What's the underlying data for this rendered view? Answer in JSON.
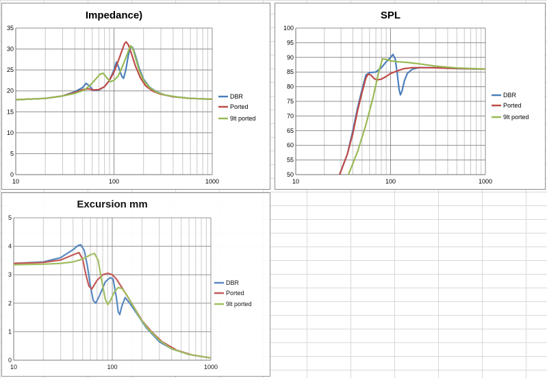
{
  "colors": {
    "DBR": "#4a7ebb",
    "Ported": "#be4b48",
    "9lt ported": "#98b954"
  },
  "chart_data": [
    {
      "type": "line",
      "title": "Impedance)",
      "xscale": "log",
      "xlim": [
        10,
        1000
      ],
      "ylim": [
        0,
        35
      ],
      "xticks": [
        "10",
        "100",
        "1000"
      ],
      "yticks": [
        "0",
        "5",
        "10",
        "15",
        "20",
        "25",
        "30",
        "35"
      ],
      "legend": [
        "DBR",
        "Ported",
        "9lt ported"
      ],
      "series": [
        {
          "name": "DBR",
          "points": [
            [
              10,
              17.9
            ],
            [
              20,
              18.2
            ],
            [
              30,
              18.8
            ],
            [
              40,
              19.8
            ],
            [
              48,
              20.8
            ],
            [
              52,
              21.8
            ],
            [
              56,
              21.2
            ],
            [
              62,
              20.1
            ],
            [
              70,
              20.2
            ],
            [
              80,
              21.0
            ],
            [
              90,
              22.5
            ],
            [
              100,
              25.0
            ],
            [
              106,
              26.9
            ],
            [
              112,
              25.5
            ],
            [
              120,
              23.5
            ],
            [
              125,
              23.0
            ],
            [
              132,
              25.0
            ],
            [
              140,
              28.5
            ],
            [
              148,
              30.5
            ],
            [
              155,
              30.4
            ],
            [
              165,
              28.5
            ],
            [
              180,
              25.5
            ],
            [
              200,
              22.8
            ],
            [
              230,
              20.9
            ],
            [
              270,
              19.8
            ],
            [
              330,
              19.0
            ],
            [
              450,
              18.5
            ],
            [
              600,
              18.2
            ],
            [
              1000,
              18.0
            ]
          ]
        },
        {
          "name": "Ported",
          "points": [
            [
              10,
              17.9
            ],
            [
              20,
              18.2
            ],
            [
              30,
              18.8
            ],
            [
              40,
              19.6
            ],
            [
              48,
              20.3
            ],
            [
              55,
              20.5
            ],
            [
              62,
              20.2
            ],
            [
              70,
              20.3
            ],
            [
              80,
              21.0
            ],
            [
              90,
              22.5
            ],
            [
              100,
              24.5
            ],
            [
              110,
              27.0
            ],
            [
              120,
              29.5
            ],
            [
              128,
              31.3
            ],
            [
              133,
              31.7
            ],
            [
              140,
              31.0
            ],
            [
              150,
              29.0
            ],
            [
              165,
              26.0
            ],
            [
              185,
              23.2
            ],
            [
              210,
              21.2
            ],
            [
              250,
              19.9
            ],
            [
              300,
              19.2
            ],
            [
              400,
              18.6
            ],
            [
              600,
              18.2
            ],
            [
              1000,
              18.0
            ]
          ]
        },
        {
          "name": "9lt ported",
          "points": [
            [
              10,
              17.9
            ],
            [
              20,
              18.2
            ],
            [
              30,
              18.8
            ],
            [
              40,
              19.4
            ],
            [
              50,
              20.2
            ],
            [
              58,
              21.5
            ],
            [
              65,
              22.8
            ],
            [
              72,
              24.0
            ],
            [
              78,
              24.2
            ],
            [
              84,
              23.2
            ],
            [
              92,
              22.2
            ],
            [
              100,
              22.5
            ],
            [
              110,
              23.5
            ],
            [
              120,
              25.5
            ],
            [
              130,
              27.5
            ],
            [
              140,
              29.5
            ],
            [
              148,
              30.8
            ],
            [
              155,
              30.2
            ],
            [
              165,
              28.0
            ],
            [
              180,
              25.0
            ],
            [
              200,
              22.5
            ],
            [
              230,
              20.8
            ],
            [
              270,
              19.7
            ],
            [
              330,
              19.0
            ],
            [
              450,
              18.5
            ],
            [
              600,
              18.2
            ],
            [
              1000,
              18.0
            ]
          ]
        }
      ]
    },
    {
      "type": "line",
      "title": "SPL",
      "xscale": "log",
      "xlim": [
        10,
        1000
      ],
      "ylim": [
        50,
        100
      ],
      "xticks": [
        "10",
        "100",
        "1000"
      ],
      "yticks": [
        "50",
        "55",
        "60",
        "65",
        "70",
        "75",
        "80",
        "85",
        "90",
        "95",
        "100"
      ],
      "legend": [
        "DBR",
        "Ported",
        "9lt ported"
      ],
      "series": [
        {
          "name": "DBR",
          "points": [
            [
              29,
              50
            ],
            [
              35,
              57
            ],
            [
              40,
              65
            ],
            [
              45,
              73
            ],
            [
              50,
              79
            ],
            [
              55,
              84
            ],
            [
              60,
              84.8
            ],
            [
              70,
              85.0
            ],
            [
              80,
              86.5
            ],
            [
              90,
              88.5
            ],
            [
              100,
              90.0
            ],
            [
              106,
              91.0
            ],
            [
              112,
              89.5
            ],
            [
              118,
              84
            ],
            [
              123,
              79
            ],
            [
              127,
              77.2
            ],
            [
              132,
              78.5
            ],
            [
              140,
              82
            ],
            [
              150,
              84.5
            ],
            [
              170,
              86.0
            ],
            [
              200,
              86.5
            ],
            [
              300,
              86.5
            ],
            [
              500,
              86.2
            ],
            [
              1000,
              86.0
            ]
          ]
        },
        {
          "name": "Ported",
          "points": [
            [
              29,
              50
            ],
            [
              35,
              57
            ],
            [
              40,
              64
            ],
            [
              45,
              72
            ],
            [
              50,
              78
            ],
            [
              55,
              83
            ],
            [
              58,
              84.3
            ],
            [
              62,
              84.0
            ],
            [
              67,
              82.8
            ],
            [
              72,
              82.3
            ],
            [
              80,
              82.6
            ],
            [
              90,
              83.5
            ],
            [
              100,
              84.5
            ],
            [
              120,
              85.5
            ],
            [
              140,
              86.2
            ],
            [
              170,
              86.5
            ],
            [
              250,
              86.5
            ],
            [
              400,
              86.3
            ],
            [
              1000,
              86.0
            ]
          ]
        },
        {
          "name": "9lt ported",
          "points": [
            [
              36,
              50
            ],
            [
              45,
              58
            ],
            [
              55,
              67
            ],
            [
              65,
              76
            ],
            [
              75,
              85
            ],
            [
              82,
              89.5
            ],
            [
              90,
              89.3
            ],
            [
              100,
              88.8
            ],
            [
              120,
              88.5
            ],
            [
              150,
              88.3
            ],
            [
              200,
              87.8
            ],
            [
              300,
              87.0
            ],
            [
              500,
              86.4
            ],
            [
              1000,
              86.0
            ]
          ]
        }
      ]
    },
    {
      "type": "line",
      "title": "Excursion mm",
      "xscale": "log",
      "xlim": [
        10,
        1000
      ],
      "ylim": [
        0,
        5
      ],
      "xticks": [
        "10",
        "100",
        "1000"
      ],
      "yticks": [
        "0",
        "1",
        "2",
        "3",
        "4",
        "5"
      ],
      "legend": [
        "DBR",
        "Ported",
        "9lt ported"
      ],
      "series": [
        {
          "name": "DBR",
          "points": [
            [
              10,
              3.4
            ],
            [
              20,
              3.45
            ],
            [
              30,
              3.6
            ],
            [
              40,
              3.88
            ],
            [
              45,
              4.03
            ],
            [
              48,
              4.05
            ],
            [
              52,
              3.85
            ],
            [
              56,
              3.3
            ],
            [
              60,
              2.6
            ],
            [
              64,
              2.1
            ],
            [
              68,
              2.0
            ],
            [
              75,
              2.3
            ],
            [
              85,
              2.75
            ],
            [
              95,
              2.9
            ],
            [
              102,
              2.85
            ],
            [
              110,
              2.2
            ],
            [
              115,
              1.7
            ],
            [
              119,
              1.6
            ],
            [
              125,
              1.9
            ],
            [
              135,
              2.2
            ],
            [
              150,
              2.0
            ],
            [
              180,
              1.6
            ],
            [
              220,
              1.15
            ],
            [
              300,
              0.65
            ],
            [
              400,
              0.4
            ],
            [
              600,
              0.2
            ],
            [
              1000,
              0.08
            ]
          ]
        },
        {
          "name": "Ported",
          "points": [
            [
              10,
              3.4
            ],
            [
              20,
              3.43
            ],
            [
              30,
              3.52
            ],
            [
              40,
              3.7
            ],
            [
              46,
              3.78
            ],
            [
              50,
              3.55
            ],
            [
              54,
              3.0
            ],
            [
              58,
              2.6
            ],
            [
              62,
              2.5
            ],
            [
              70,
              2.8
            ],
            [
              80,
              3.0
            ],
            [
              90,
              3.05
            ],
            [
              100,
              3.0
            ],
            [
              110,
              2.85
            ],
            [
              125,
              2.55
            ],
            [
              145,
              2.2
            ],
            [
              170,
              1.8
            ],
            [
              200,
              1.4
            ],
            [
              250,
              1.0
            ],
            [
              320,
              0.65
            ],
            [
              450,
              0.35
            ],
            [
              650,
              0.18
            ],
            [
              1000,
              0.08
            ]
          ]
        },
        {
          "name": "9lt ported",
          "points": [
            [
              10,
              3.35
            ],
            [
              20,
              3.37
            ],
            [
              30,
              3.4
            ],
            [
              40,
              3.45
            ],
            [
              50,
              3.55
            ],
            [
              60,
              3.7
            ],
            [
              66,
              3.75
            ],
            [
              72,
              3.5
            ],
            [
              78,
              2.8
            ],
            [
              85,
              2.15
            ],
            [
              90,
              1.95
            ],
            [
              96,
              2.1
            ],
            [
              105,
              2.4
            ],
            [
              115,
              2.55
            ],
            [
              125,
              2.52
            ],
            [
              140,
              2.3
            ],
            [
              160,
              1.95
            ],
            [
              190,
              1.5
            ],
            [
              230,
              1.1
            ],
            [
              300,
              0.7
            ],
            [
              400,
              0.4
            ],
            [
              600,
              0.2
            ],
            [
              1000,
              0.08
            ]
          ]
        }
      ]
    }
  ]
}
